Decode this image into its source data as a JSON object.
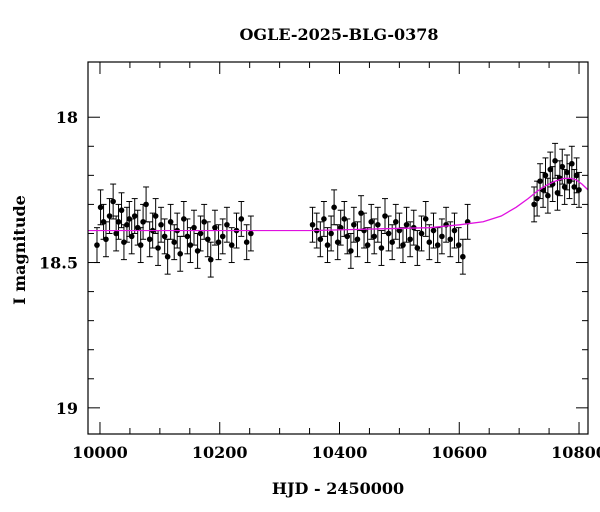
{
  "chart_data": {
    "type": "scatter",
    "title": "OGLE-2025-BLG-0378",
    "xlabel": "HJD - 2450000",
    "ylabel": "I magnitude",
    "xlim": [
      9980,
      10815
    ],
    "ylim": [
      19.09,
      17.81
    ],
    "y_inverted": true,
    "x_ticks": [
      10000,
      10200,
      10400,
      10600,
      10800
    ],
    "y_ticks": [
      18,
      18.5,
      19
    ],
    "grid": false,
    "legend": "none",
    "colors": {
      "points": "#000000",
      "model": "#e010e0"
    },
    "series": [
      {
        "kind": "points_with_errorbars",
        "x": [
          9995,
          10001,
          10006,
          10010,
          10016,
          10022,
          10027,
          10031,
          10036,
          10040,
          10045,
          10049,
          10053,
          10058,
          10063,
          10068,
          10072,
          10077,
          10083,
          10088,
          10093,
          10097,
          10102,
          10108,
          10113,
          10118,
          10124,
          10129,
          10134,
          10140,
          10146,
          10151,
          10157,
          10163,
          10168,
          10174,
          10180,
          10185,
          10192,
          10198,
          10205,
          10212,
          10220,
          10228,
          10236,
          10245,
          10252,
          10355,
          10362,
          10368,
          10374,
          10380,
          10386,
          10391,
          10397,
          10402,
          10408,
          10413,
          10419,
          10424,
          10430,
          10436,
          10441,
          10447,
          10453,
          10458,
          10464,
          10470,
          10476,
          10482,
          10488,
          10494,
          10500,
          10506,
          10512,
          10518,
          10524,
          10530,
          10537,
          10544,
          10550,
          10557,
          10564,
          10571,
          10578,
          10585,
          10592,
          10599,
          10606,
          10614,
          10725,
          10730,
          10735,
          10740,
          10744,
          10748,
          10752,
          10756,
          10760,
          10764,
          10768,
          10772,
          10776,
          10780,
          10784,
          10788,
          10792,
          10796,
          10800
        ],
        "y": [
          18.44,
          18.31,
          18.36,
          18.42,
          18.34,
          18.29,
          18.4,
          18.36,
          18.32,
          18.43,
          18.37,
          18.35,
          18.41,
          18.34,
          18.38,
          18.44,
          18.36,
          18.3,
          18.42,
          18.39,
          18.34,
          18.45,
          18.37,
          18.41,
          18.48,
          18.36,
          18.43,
          18.39,
          18.47,
          18.35,
          18.41,
          18.44,
          18.38,
          18.46,
          18.4,
          18.36,
          18.42,
          18.49,
          18.38,
          18.43,
          18.41,
          18.37,
          18.44,
          18.39,
          18.35,
          18.43,
          18.4,
          18.37,
          18.39,
          18.42,
          18.35,
          18.44,
          18.4,
          18.31,
          18.43,
          18.38,
          18.35,
          18.41,
          18.46,
          18.37,
          18.42,
          18.33,
          18.39,
          18.44,
          18.36,
          18.41,
          18.37,
          18.45,
          18.34,
          18.4,
          18.43,
          18.36,
          18.39,
          18.44,
          18.37,
          18.42,
          18.38,
          18.45,
          18.4,
          18.35,
          18.43,
          18.39,
          18.44,
          18.41,
          18.37,
          18.42,
          18.39,
          18.44,
          18.48,
          18.36,
          18.3,
          18.28,
          18.22,
          18.25,
          18.2,
          18.27,
          18.18,
          18.23,
          18.15,
          18.26,
          18.21,
          18.17,
          18.24,
          18.19,
          18.22,
          18.16,
          18.24,
          18.2,
          18.25
        ],
        "err": 0.06
      },
      {
        "kind": "model_curve",
        "x": [
          9980,
          10050,
          10150,
          10250,
          10350,
          10450,
          10550,
          10600,
          10640,
          10670,
          10695,
          10715,
          10730,
          10745,
          10760,
          10775,
          10785,
          10795,
          10805,
          10815
        ],
        "y": [
          18.39,
          18.39,
          18.39,
          18.39,
          18.39,
          18.385,
          18.38,
          18.37,
          18.36,
          18.34,
          18.31,
          18.28,
          18.255,
          18.235,
          18.22,
          18.21,
          18.21,
          18.215,
          18.23,
          18.25
        ]
      }
    ]
  }
}
